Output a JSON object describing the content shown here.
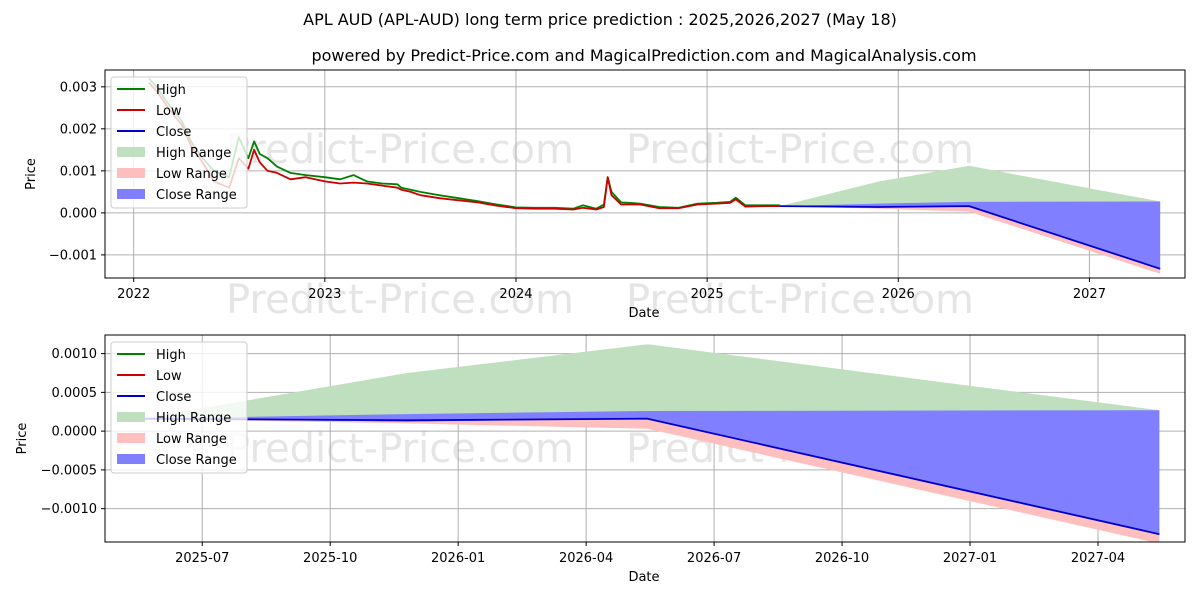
{
  "title": "APL AUD (APL-AUD) long term price prediction : 2025,2026,2027 (May 18)",
  "subtitle": "powered by Predict-Price.com and MagicalPrediction.com and MagicalAnalysis.com",
  "watermark": "Predict-Price.com",
  "colors": {
    "high": "#008000",
    "low": "#cc0000",
    "close": "#0000cc",
    "high_range": "#bfdfbf",
    "low_range": "#ffbfbf",
    "close_range": "#7f7fff"
  },
  "legend": [
    "High",
    "Low",
    "Close",
    "High Range",
    "Low Range",
    "Close Range"
  ],
  "chart_data": [
    {
      "type": "line",
      "name": "overview",
      "xlabel": "Date",
      "ylabel": "Price",
      "xlim": [
        2021.85,
        2027.5
      ],
      "ylim": [
        -0.00155,
        0.0034
      ],
      "x_ticks": [
        2022,
        2023,
        2024,
        2025,
        2026,
        2027
      ],
      "x_tick_labels": [
        "2022",
        "2023",
        "2024",
        "2025",
        "2026",
        "2027"
      ],
      "y_ticks": [
        -0.001,
        0.0,
        0.001,
        0.002,
        0.003
      ],
      "y_tick_labels": [
        "−0.001",
        "0.000",
        "0.001",
        "0.002",
        "0.003"
      ],
      "legend_position": "upper-left",
      "grid": true,
      "series": [
        {
          "name": "High",
          "x": [
            2022.08,
            2022.12,
            2022.18,
            2022.25,
            2022.3,
            2022.36,
            2022.42,
            2022.5,
            2022.55,
            2022.6,
            2022.63,
            2022.66,
            2022.7,
            2022.75,
            2022.82,
            2022.9,
            2023.0,
            2023.08,
            2023.15,
            2023.22,
            2023.3,
            2023.38,
            2023.4,
            2023.45,
            2023.5,
            2023.6,
            2023.7,
            2023.8,
            2023.9,
            2024.0,
            2024.1,
            2024.2,
            2024.3,
            2024.35,
            2024.42,
            2024.46,
            2024.48,
            2024.5,
            2024.55,
            2024.65,
            2024.75,
            2024.85,
            2024.95,
            2025.05,
            2025.12,
            2025.15,
            2025.2,
            2025.3,
            2025.38
          ],
          "values": [
            0.0032,
            0.003,
            0.0026,
            0.0022,
            0.0017,
            0.0013,
            0.001,
            0.00085,
            0.0018,
            0.0013,
            0.0017,
            0.0014,
            0.0013,
            0.0011,
            0.00095,
            0.0009,
            0.00085,
            0.0008,
            0.0009,
            0.00075,
            0.0007,
            0.00068,
            0.0006,
            0.00055,
            0.0005,
            0.00042,
            0.00035,
            0.00028,
            0.0002,
            0.00013,
            0.00012,
            0.00012,
            0.0001,
            0.00018,
            0.0001,
            0.0002,
            0.00085,
            0.0005,
            0.00025,
            0.00022,
            0.00014,
            0.00012,
            0.00022,
            0.00024,
            0.00026,
            0.00036,
            0.00018,
            0.00018,
            0.00018
          ]
        },
        {
          "name": "Low",
          "x": [
            2022.08,
            2022.12,
            2022.18,
            2022.25,
            2022.3,
            2022.36,
            2022.42,
            2022.5,
            2022.55,
            2022.6,
            2022.63,
            2022.66,
            2022.7,
            2022.75,
            2022.82,
            2022.9,
            2023.0,
            2023.08,
            2023.15,
            2023.22,
            2023.3,
            2023.38,
            2023.4,
            2023.45,
            2023.5,
            2023.6,
            2023.7,
            2023.8,
            2023.9,
            2024.0,
            2024.1,
            2024.2,
            2024.3,
            2024.35,
            2024.42,
            2024.46,
            2024.48,
            2024.5,
            2024.55,
            2024.65,
            2024.75,
            2024.85,
            2024.95,
            2025.05,
            2025.12,
            2025.15,
            2025.2,
            2025.3,
            2025.38
          ],
          "values": [
            0.0031,
            0.0029,
            0.0025,
            0.0021,
            0.0016,
            0.0012,
            0.00075,
            0.0006,
            0.0013,
            0.00105,
            0.0015,
            0.0012,
            0.001,
            0.00095,
            0.0008,
            0.00085,
            0.00075,
            0.0007,
            0.00072,
            0.0007,
            0.00065,
            0.0006,
            0.00055,
            0.0005,
            0.00042,
            0.00035,
            0.0003,
            0.00025,
            0.00017,
            0.00011,
            0.0001,
            0.0001,
            8e-05,
            0.00012,
            8e-05,
            0.00014,
            0.00085,
            0.00042,
            0.0002,
            0.0002,
            0.00011,
            0.00011,
            0.0002,
            0.00022,
            0.00024,
            0.00032,
            0.00015,
            0.00016,
            0.00016
          ]
        },
        {
          "name": "Close",
          "x": [
            2025.38,
            2025.9,
            2026.37,
            2027.37
          ],
          "values": [
            0.00016,
            0.00014,
            0.00016,
            -0.00133
          ]
        }
      ],
      "ranges": [
        {
          "name": "High Range",
          "x": [
            2025.38,
            2025.9,
            2026.37,
            2027.37
          ],
          "upper": [
            0.00016,
            0.00075,
            0.00112,
            0.00027
          ],
          "lower": [
            0.00016,
            0.00012,
            0.00016,
            0.00027
          ]
        },
        {
          "name": "Close Range",
          "x": [
            2025.38,
            2025.9,
            2026.37,
            2027.37
          ],
          "upper": [
            0.00016,
            0.00022,
            0.00026,
            0.00027
          ],
          "lower": [
            0.00016,
            0.00012,
            0.00016,
            -0.00133
          ]
        },
        {
          "name": "Low Range",
          "x": [
            2025.38,
            2025.9,
            2026.37,
            2027.37
          ],
          "upper": [
            0.00016,
            0.00012,
            0.00016,
            -0.00133
          ],
          "lower": [
            0.00016,
            0.0001,
            3e-05,
            -0.00145
          ]
        }
      ]
    },
    {
      "type": "line",
      "name": "forecast-detail",
      "xlabel": "Date",
      "ylabel": "Price",
      "xlim": [
        2025.31,
        2027.42
      ],
      "ylim": [
        -0.00143,
        0.00124
      ],
      "x_ticks": [
        2025.5,
        2025.75,
        2026.0,
        2026.25,
        2026.5,
        2026.75,
        2027.0,
        2027.25
      ],
      "x_tick_labels": [
        "2025-07",
        "2025-10",
        "2026-01",
        "2026-04",
        "2026-07",
        "2026-10",
        "2027-01",
        "2027-04"
      ],
      "y_ticks": [
        -0.001,
        -0.0005,
        0.0,
        0.0005,
        0.001
      ],
      "y_tick_labels": [
        "−0.0010",
        "−0.0005",
        "0.0000",
        "0.0005",
        "0.0010"
      ],
      "legend_position": "upper-left",
      "grid": true,
      "series": [
        {
          "name": "Close",
          "x": [
            2025.38,
            2025.9,
            2026.37,
            2027.37
          ],
          "values": [
            0.00016,
            0.00014,
            0.00016,
            -0.00133
          ]
        }
      ],
      "ranges": [
        {
          "name": "High Range",
          "x": [
            2025.38,
            2025.9,
            2026.37,
            2027.37
          ],
          "upper": [
            0.00016,
            0.00075,
            0.00112,
            0.00027
          ],
          "lower": [
            0.00016,
            0.00012,
            0.00016,
            0.00027
          ]
        },
        {
          "name": "Close Range",
          "x": [
            2025.38,
            2025.9,
            2026.37,
            2027.37
          ],
          "upper": [
            0.00016,
            0.00022,
            0.00026,
            0.00027
          ],
          "lower": [
            0.00016,
            0.00012,
            0.00016,
            -0.00133
          ]
        },
        {
          "name": "Low Range",
          "x": [
            2025.38,
            2025.9,
            2026.37,
            2027.37
          ],
          "upper": [
            0.00016,
            0.00012,
            0.00016,
            -0.00133
          ],
          "lower": [
            0.00016,
            0.0001,
            3e-05,
            -0.00145
          ]
        }
      ]
    }
  ]
}
